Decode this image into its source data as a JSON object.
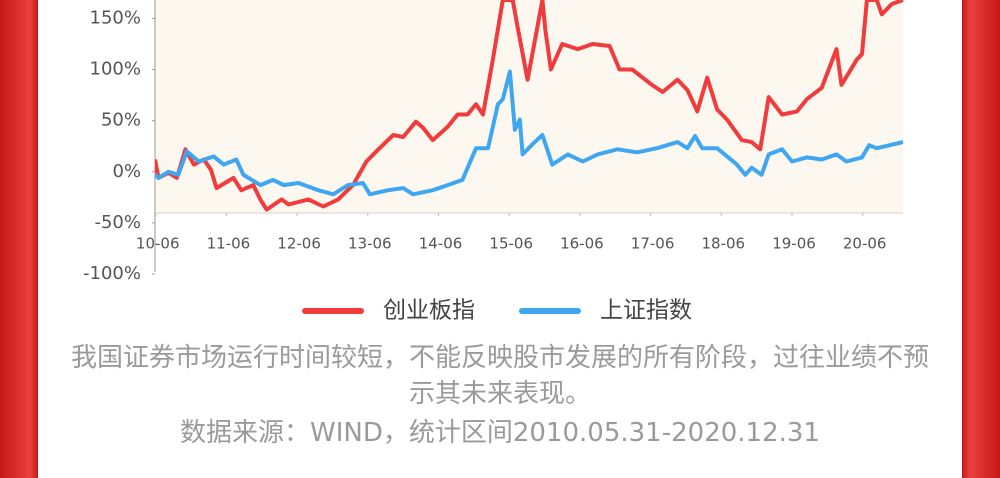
{
  "chart_data": {
    "type": "line",
    "xlim": [
      2010.41,
      2020.99
    ],
    "xticks": [
      {
        "value": 2010.42,
        "label": "10-06"
      },
      {
        "value": 2011.42,
        "label": "11-06"
      },
      {
        "value": 2012.42,
        "label": "12-06"
      },
      {
        "value": 2013.42,
        "label": "13-06"
      },
      {
        "value": 2014.42,
        "label": "14-06"
      },
      {
        "value": 2015.42,
        "label": "15-06"
      },
      {
        "value": 2016.42,
        "label": "16-06"
      },
      {
        "value": 2017.42,
        "label": "17-06"
      },
      {
        "value": 2018.42,
        "label": "18-06"
      },
      {
        "value": 2019.42,
        "label": "19-06"
      },
      {
        "value": 2020.42,
        "label": "20-06"
      }
    ],
    "ylim": [
      -100,
      168
    ],
    "yticks": [
      {
        "value": 150,
        "label": "150%"
      },
      {
        "value": 100,
        "label": "100%"
      },
      {
        "value": 50,
        "label": "50%"
      },
      {
        "value": 0,
        "label": "0%"
      },
      {
        "value": -50,
        "label": "-50%"
      },
      {
        "value": -100,
        "label": "-100%"
      }
    ],
    "grid": false,
    "legend": "bottom",
    "series": [
      {
        "name": "创业板指",
        "color": "#f03c3c",
        "x": [
          2010.41,
          2010.46,
          2010.6,
          2010.72,
          2010.84,
          2010.96,
          2011.1,
          2011.2,
          2011.28,
          2011.52,
          2011.63,
          2011.8,
          2011.9,
          2011.99,
          2012.2,
          2012.3,
          2012.58,
          2012.79,
          2013.0,
          2013.21,
          2013.4,
          2013.57,
          2013.78,
          2013.92,
          2014.1,
          2014.2,
          2014.34,
          2014.55,
          2014.69,
          2014.83,
          2014.95,
          2015.05,
          2015.19,
          2015.33,
          2015.47,
          2015.54,
          2015.68,
          2015.89,
          2015.93,
          2016.01,
          2016.17,
          2016.39,
          2016.6,
          2016.84,
          2016.98,
          2017.16,
          2017.44,
          2017.59,
          2017.8,
          2017.94,
          2018.08,
          2018.22,
          2018.36,
          2018.5,
          2018.71,
          2018.85,
          2018.97,
          2019.09,
          2019.28,
          2019.49,
          2019.63,
          2019.84,
          2020.05,
          2020.12,
          2020.34,
          2020.41,
          2020.48,
          2020.62,
          2020.69,
          2020.83,
          2020.99
        ],
        "values": [
          12,
          -6,
          -1,
          -6,
          22,
          7,
          12,
          2,
          -16,
          -6,
          -18,
          -13,
          -27,
          -37,
          -27,
          -32,
          -27,
          -34,
          -27,
          -13,
          10,
          22,
          36,
          34,
          49,
          43,
          31,
          44,
          56,
          56,
          66,
          56,
          110,
          168,
          168,
          141,
          90,
          168,
          139,
          100,
          125,
          120,
          125,
          123,
          100,
          100,
          85,
          78,
          90,
          80,
          59,
          92,
          61,
          51,
          31,
          29,
          22,
          73,
          56,
          59,
          71,
          82,
          120,
          85,
          110,
          115,
          168,
          168,
          154,
          164,
          168
        ]
      },
      {
        "name": "上证指数",
        "color": "#3fa6f2",
        "x": [
          2010.41,
          2010.46,
          2010.6,
          2010.74,
          2010.86,
          2011.03,
          2011.24,
          2011.38,
          2011.56,
          2011.66,
          2011.9,
          2012.08,
          2012.23,
          2012.44,
          2012.72,
          2012.93,
          2013.14,
          2013.35,
          2013.45,
          2013.71,
          2013.92,
          2014.06,
          2014.34,
          2014.55,
          2014.76,
          2014.95,
          2015.12,
          2015.26,
          2015.33,
          2015.43,
          2015.5,
          2015.57,
          2015.61,
          2015.75,
          2015.89,
          2016.03,
          2016.25,
          2016.46,
          2016.67,
          2016.95,
          2017.23,
          2017.51,
          2017.8,
          2017.94,
          2018.05,
          2018.15,
          2018.36,
          2018.64,
          2018.76,
          2018.85,
          2018.99,
          2019.09,
          2019.28,
          2019.42,
          2019.63,
          2019.84,
          2020.05,
          2020.19,
          2020.41,
          2020.51,
          2020.62,
          2020.99
        ],
        "values": [
          -3,
          -6,
          0,
          -3,
          20,
          10,
          15,
          7,
          12,
          -3,
          -13,
          -8,
          -13,
          -11,
          -18,
          -22,
          -13,
          -11,
          -22,
          -18,
          -16,
          -22,
          -18,
          -13,
          -8,
          23,
          23,
          66,
          71,
          98,
          41,
          51,
          17,
          27,
          36,
          7,
          17,
          10,
          17,
          22,
          19,
          23,
          29,
          23,
          35,
          23,
          23,
          7,
          -3,
          4,
          -3,
          17,
          22,
          10,
          14,
          12,
          17,
          10,
          14,
          26,
          23,
          29
        ]
      }
    ],
    "notes": [
      "我国证券市场运行时间较短，不能反映股市发展的所有阶段，过往业绩不预示其未来表现。",
      "数据来源：WIND，统计区间2010.05.31-2020.12.31"
    ]
  }
}
